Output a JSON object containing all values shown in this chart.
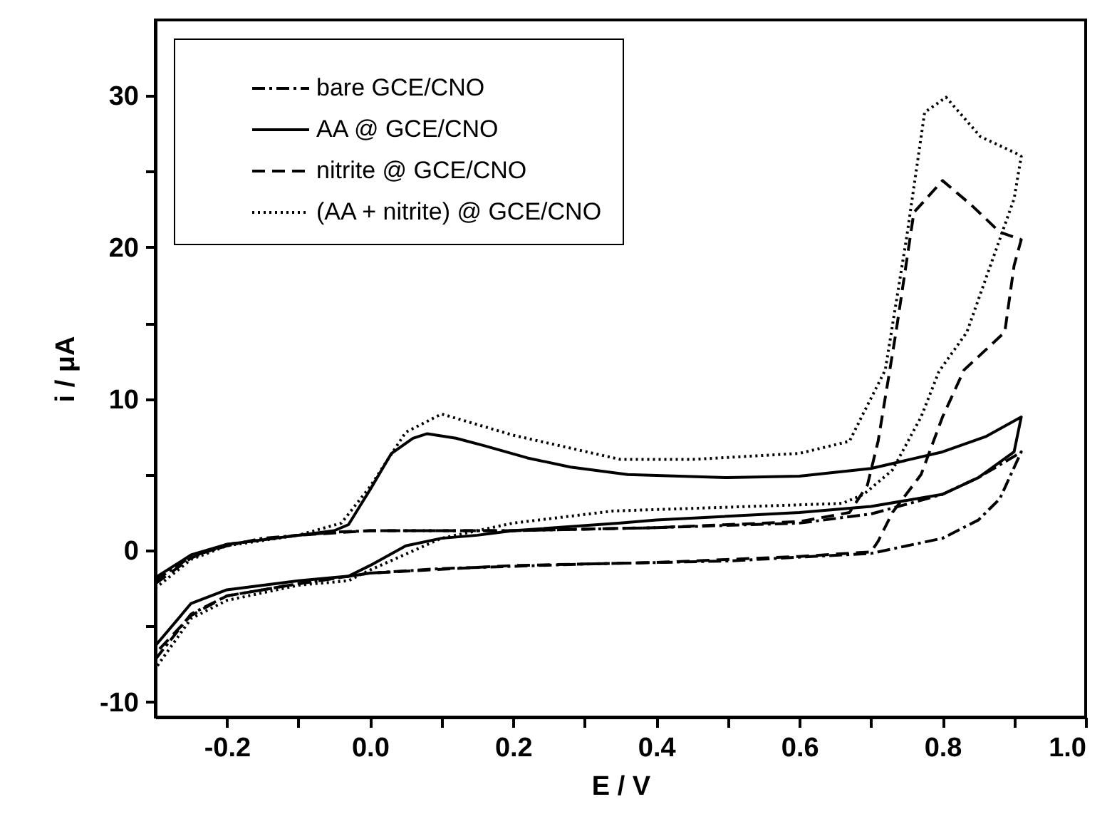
{
  "chart_data": {
    "type": "line",
    "xlabel": "E / V",
    "ylabel": "i / μA",
    "xlim": [
      -0.3,
      1.0
    ],
    "xticks": [
      {
        "value": -0.2,
        "label": "-0.2"
      },
      {
        "value": -0.1,
        "label": null
      },
      {
        "value": 0,
        "label": "0.0"
      },
      {
        "value": 0.1,
        "label": null
      },
      0.2,
      {
        "value": 0.3,
        "label": null
      },
      0.4,
      {
        "value": 0.5,
        "label": null
      },
      0.6,
      {
        "value": 0.7,
        "label": null
      },
      0.8,
      {
        "value": 0.9,
        "label": null
      },
      {
        "value": 1,
        "label": "1.0"
      }
    ],
    "ylim": [
      -11,
      35
    ],
    "yticks": [
      -10,
      {
        "value": -5,
        "label": null
      },
      0,
      {
        "value": 5,
        "label": null
      },
      10,
      {
        "value": 15,
        "label": null
      },
      20,
      {
        "value": 25,
        "label": null
      },
      30
    ],
    "grid": false,
    "legend": "top left",
    "marker": "none",
    "series": [
      {
        "name": "bare GCE/CNO",
        "color": "#000000",
        "line_style": "dashdot",
        "x": [
          -0.3,
          -0.25,
          -0.2,
          -0.15,
          -0.1,
          -0.05,
          0.0,
          0.2,
          0.4,
          0.6,
          0.7,
          0.8,
          0.85,
          0.9,
          0.91,
          0.88,
          0.85,
          0.8,
          0.7,
          0.5,
          0.3,
          0.1,
          0.0,
          -0.1,
          -0.2,
          -0.25,
          -0.3
        ],
        "values": [
          -2.0,
          -0.4,
          0.3,
          0.8,
          1.0,
          1.2,
          1.3,
          1.3,
          1.5,
          1.8,
          2.4,
          3.7,
          4.8,
          6.2,
          6.5,
          3.4,
          2.0,
          0.8,
          -0.2,
          -0.7,
          -0.9,
          -1.2,
          -1.5,
          -2.2,
          -3.0,
          -4.2,
          -7.2
        ]
      },
      {
        "name": "AA @ GCE/CNO",
        "color": "#000000",
        "line_style": "solid",
        "x": [
          -0.3,
          -0.25,
          -0.2,
          -0.1,
          -0.05,
          -0.03,
          0.0,
          0.03,
          0.06,
          0.08,
          0.12,
          0.16,
          0.22,
          0.28,
          0.36,
          0.5,
          0.6,
          0.7,
          0.8,
          0.86,
          0.91,
          0.9,
          0.85,
          0.8,
          0.7,
          0.6,
          0.4,
          0.35,
          0.2,
          0.15,
          0.1,
          0.05,
          0.0,
          -0.03,
          -0.1,
          -0.2,
          -0.25,
          -0.3
        ],
        "values": [
          -1.8,
          -0.3,
          0.4,
          1.0,
          1.3,
          1.7,
          4.0,
          6.4,
          7.4,
          7.7,
          7.4,
          6.9,
          6.1,
          5.5,
          5.0,
          4.8,
          4.9,
          5.4,
          6.5,
          7.5,
          8.8,
          6.5,
          4.8,
          3.7,
          2.9,
          2.5,
          2.0,
          1.8,
          1.3,
          1.0,
          0.8,
          0.3,
          -1.0,
          -1.7,
          -2.0,
          -2.6,
          -3.5,
          -6.3
        ]
      },
      {
        "name": "nitrite @ GCE/CNO",
        "color": "#000000",
        "line_style": "dashed",
        "x": [
          -0.3,
          -0.25,
          -0.2,
          -0.1,
          0.0,
          0.2,
          0.4,
          0.6,
          0.67,
          0.695,
          0.71,
          0.735,
          0.76,
          0.8,
          0.84,
          0.88,
          0.91,
          0.9,
          0.887,
          0.83,
          0.8,
          0.77,
          0.73,
          0.71,
          0.7,
          0.6,
          0.4,
          0.2,
          0.0,
          -0.1,
          -0.2,
          -0.25,
          -0.3
        ],
        "values": [
          -2.2,
          -0.5,
          0.4,
          1.0,
          1.3,
          1.3,
          1.5,
          1.9,
          2.5,
          4.3,
          7.2,
          14.4,
          22.3,
          24.4,
          22.8,
          21.0,
          20.5,
          18.8,
          14.4,
          11.9,
          8.8,
          5.0,
          2.5,
          0.6,
          -0.1,
          -0.4,
          -0.8,
          -1.0,
          -1.5,
          -2.2,
          -3.0,
          -4.3,
          -6.8
        ]
      },
      {
        "name": "(AA + nitrite) @ GCE/CNO",
        "color": "#000000",
        "line_style": "dotted",
        "x": [
          -0.3,
          -0.25,
          -0.2,
          -0.1,
          -0.04,
          0.0,
          0.05,
          0.1,
          0.2,
          0.35,
          0.45,
          0.6,
          0.67,
          0.69,
          0.72,
          0.75,
          0.775,
          0.805,
          0.853,
          0.903,
          0.91,
          0.9,
          0.867,
          0.834,
          0.795,
          0.77,
          0.73,
          0.69,
          0.66,
          0.34,
          0.2,
          0.1,
          0.0,
          -0.03,
          -0.1,
          -0.2,
          -0.25,
          -0.3
        ],
        "values": [
          -2.5,
          -0.6,
          0.3,
          1.0,
          1.8,
          4.2,
          7.8,
          9.0,
          7.6,
          6.0,
          6.0,
          6.4,
          7.2,
          9.1,
          11.9,
          20.7,
          28.9,
          29.9,
          27.3,
          26.2,
          26.0,
          23.2,
          18.8,
          14.4,
          11.8,
          8.8,
          5.3,
          3.7,
          3.1,
          2.6,
          1.8,
          0.8,
          -1.3,
          -2.0,
          -2.3,
          -3.3,
          -4.5,
          -7.8
        ]
      }
    ]
  }
}
